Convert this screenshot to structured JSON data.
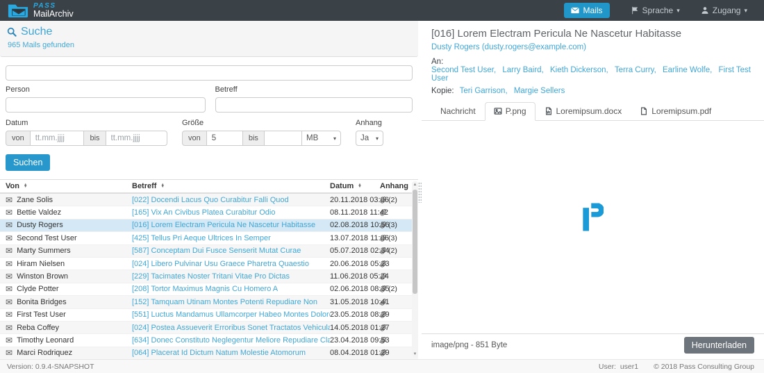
{
  "colors": {
    "navbar_bg": "#3a4147",
    "accent_blue": "#2196c9",
    "link_blue": "#41a7d6",
    "selected_row_bg": "#d4e8f5",
    "download_button_bg": "#6d747b",
    "logo_blue": "#29a9e1"
  },
  "navbar": {
    "brand_name": "PASS",
    "brand_subtitle": "MailArchiv",
    "mails_label": "Mails",
    "sprache_label": "Sprache",
    "zugang_label": "Zugang"
  },
  "search": {
    "title": "Suche",
    "result_count": "965 Mails gefunden",
    "fulltext_value": "",
    "person_label": "Person",
    "person_value": "",
    "betreff_label": "Betreff",
    "betreff_value": "",
    "datum_label": "Datum",
    "groesse_label": "Größe",
    "anhang_label": "Anhang",
    "von_label": "von",
    "bis_label": "bis",
    "date_placeholder": "tt.mm.jjjj",
    "date_von_value": "",
    "date_bis_value": "",
    "size_von_value": "5",
    "size_bis_value": "",
    "size_unit_value": "MB",
    "anhang_value": "Ja",
    "suchen_label": "Suchen"
  },
  "mail_table": {
    "columns": [
      "Von",
      "Betreff",
      "Datum",
      "Anhang"
    ],
    "rows": [
      {
        "von": "Zane Solis",
        "betreff": "[022] Docendi Lacus Quo Curabitur Falli Quod",
        "datum": "20.11.2018 03:06",
        "attachments": "(2)",
        "selected": false
      },
      {
        "von": "Bettie Valdez",
        "betreff": "[165] Vix An Civibus Platea Curabitur Odio",
        "datum": "08.11.2018 11:42",
        "attachments": "",
        "selected": false
      },
      {
        "von": "Dusty Rogers",
        "betreff": "[016] Lorem Electram Pericula Ne Nascetur Habitasse",
        "datum": "02.08.2018 10:56",
        "attachments": "(3)",
        "selected": true
      },
      {
        "von": "Second Test User",
        "betreff": "[425] Tellus Pri Aeque Ultrices In Semper",
        "datum": "13.07.2018 11:06",
        "attachments": "(3)",
        "selected": false
      },
      {
        "von": "Marty Summers",
        "betreff": "[587] Conceptam Dui Fusce Senserit Mutat Curae",
        "datum": "05.07.2018 02:34",
        "attachments": "(2)",
        "selected": false
      },
      {
        "von": "Hiram Nielsen",
        "betreff": "[024] Libero Pulvinar Usu Graece Pharetra Quaestio",
        "datum": "20.06.2018 05:23",
        "attachments": "",
        "selected": false
      },
      {
        "von": "Winston Brown",
        "betreff": "[229] Tacimates Noster Tritani Vitae Pro Dictas",
        "datum": "11.06.2018 05:24",
        "attachments": "",
        "selected": false
      },
      {
        "von": "Clyde Potter",
        "betreff": "[208] Tortor Maximus Magnis Cu Homero A",
        "datum": "02.06.2018 08:35",
        "attachments": "(2)",
        "selected": false
      },
      {
        "von": "Bonita Bridges",
        "betreff": "[152] Tamquam Utinam Montes Potenti Repudiare Non",
        "datum": "31.05.2018 10:41",
        "attachments": "",
        "selected": false
      },
      {
        "von": "First Test User",
        "betreff": "[551] Luctus Mandamus Ullamcorper Habeo Montes Dolore",
        "datum": "23.05.2018 08:29",
        "attachments": "",
        "selected": false
      },
      {
        "von": "Reba Coffey",
        "betreff": "[024] Postea Assueverit Erroribus Sonet Tractatos Vehicula",
        "datum": "14.05.2018 01:27",
        "attachments": "",
        "selected": false
      },
      {
        "von": "Timothy Leonard",
        "betreff": "[634] Donec Constituto Neglegentur Meliore Repudiare Class",
        "datum": "23.04.2018 09:53",
        "attachments": "",
        "selected": false
      },
      {
        "von": "Marci Rodriquez",
        "betreff": "[064] Placerat Id Dictum Natum Molestie Atomorum",
        "datum": "08.04.2018 01:29",
        "attachments": "",
        "selected": false
      }
    ]
  },
  "detail": {
    "subject": "[016] Lorem Electram Pericula Ne Nascetur Habitasse",
    "from": "Dusty Rogers (dusty.rogers@example.com)",
    "an_label": "An:",
    "to": [
      "Second Test User",
      "Larry Baird",
      "Kieth Dickerson",
      "Terra Curry",
      "Earline Wolfe",
      "First Test User"
    ],
    "kopie_label": "Kopie:",
    "cc": [
      "Teri Garrison",
      "Margie Sellers"
    ],
    "tabs": [
      {
        "label": "Nachricht",
        "icon": null,
        "active": false
      },
      {
        "label": "P.png",
        "icon": "image-icon",
        "active": true
      },
      {
        "label": "Loremipsum.docx",
        "icon": "word-doc-icon",
        "active": false
      },
      {
        "label": "Loremipsum.pdf",
        "icon": "file-icon",
        "active": false
      }
    ],
    "preview_letter": "P",
    "file_info": "image/png - 851 Byte",
    "download_label": "Herunterladen"
  },
  "footer": {
    "version_label": "Version:",
    "version_value": "0.9.4-SNAPSHOT",
    "user_label": "User:",
    "user_value": "user1",
    "copyright": "© 2018 Pass Consulting Group"
  }
}
